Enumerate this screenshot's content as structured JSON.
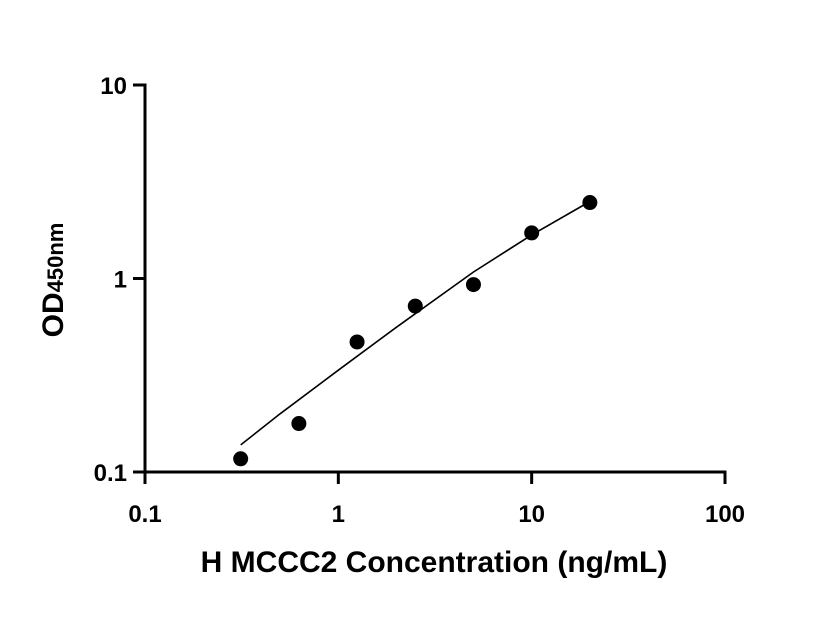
{
  "chart_data": {
    "type": "scatter",
    "title": "",
    "xlabel": "H MCCC2 Concentration (ng/mL)",
    "ylabel": {
      "main": "OD",
      "subscript": "450nm"
    },
    "xscale": "log",
    "yscale": "log",
    "xlim": [
      0.1,
      100
    ],
    "ylim": [
      0.1,
      10
    ],
    "x_ticks": [
      0.1,
      1,
      10,
      100
    ],
    "x_tick_labels": [
      "0.1",
      "1",
      "10",
      "100"
    ],
    "y_ticks": [
      0.1,
      1,
      10
    ],
    "y_tick_labels": [
      "0.1",
      "1",
      "10"
    ],
    "grid": false,
    "series": [
      {
        "x": [
          0.3125,
          0.625,
          1.25,
          2.5,
          5,
          10,
          20
        ],
        "y": [
          0.117,
          0.178,
          0.47,
          0.72,
          0.93,
          1.72,
          2.47
        ]
      }
    ],
    "fit_curve": {
      "x": [
        0.3125,
        0.5,
        1,
        2,
        5,
        10,
        20
      ],
      "y": [
        0.138,
        0.2,
        0.336,
        0.56,
        1.08,
        1.68,
        2.5
      ]
    },
    "colors": {
      "points": "#000000",
      "line": "#000000",
      "axes": "#000000"
    }
  }
}
